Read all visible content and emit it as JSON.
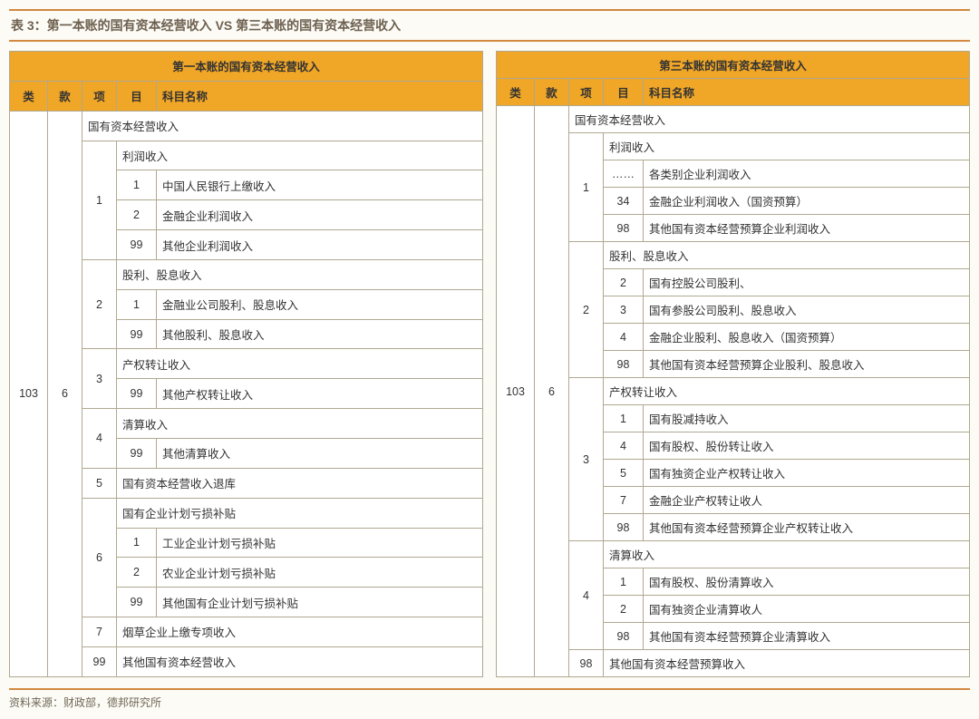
{
  "title": "表 3：第一本账的国有资本经营收入 VS 第三本账的国有资本经营收入",
  "left": {
    "caption": "第一本账的国有资本经营收入",
    "cols": {
      "lei": "类",
      "kuan": "款",
      "xiang": "项",
      "mu": "目",
      "name": "科目名称"
    },
    "lei": "103",
    "kuan": "6",
    "top": "国有资本经营收入",
    "groups": [
      {
        "xiang": "1",
        "header": "利润收入",
        "rows": [
          {
            "mu": "1",
            "name": "中国人民银行上缴收入"
          },
          {
            "mu": "2",
            "name": "金融企业利润收入",
            "red": true
          },
          {
            "mu": "99",
            "name": "其他企业利润收入"
          }
        ]
      },
      {
        "xiang": "2",
        "header": "股利、股息收入",
        "rows": [
          {
            "mu": "1",
            "name": "金融业公司股利、股息收入",
            "red": true
          },
          {
            "mu": "99",
            "name": "其他股利、股息收入"
          }
        ]
      },
      {
        "xiang": "3",
        "header": "产权转让收入",
        "rows": [
          {
            "mu": "99",
            "name": "其他产权转让收入"
          }
        ]
      },
      {
        "xiang": "4",
        "header": "清算收入",
        "rows": [
          {
            "mu": "99",
            "name": "其他清算收入"
          }
        ]
      },
      {
        "xiang": "5",
        "header": "国有资本经营收入退库",
        "rows": []
      },
      {
        "xiang": "6",
        "header": "国有企业计划亏损补贴",
        "rows": [
          {
            "mu": "1",
            "name": "工业企业计划亏损补贴"
          },
          {
            "mu": "2",
            "name": "农业企业计划亏损补贴"
          },
          {
            "mu": "99",
            "name": "其他国有企业计划亏损补贴"
          }
        ]
      },
      {
        "xiang": "7",
        "header": "烟草企业上缴专项收入",
        "rows": []
      },
      {
        "xiang": "99",
        "header": "其他国有资本经营收入",
        "rows": []
      }
    ]
  },
  "right": {
    "caption": "第三本账的国有资本经营收入",
    "cols": {
      "lei": "类",
      "kuan": "款",
      "xiang": "项",
      "mu": "目",
      "name": "科目名称"
    },
    "lei": "103",
    "kuan": "6",
    "top": "国有资本经营收入",
    "groups": [
      {
        "xiang": "1",
        "header": "利润收入",
        "rows": [
          {
            "mu": "……",
            "name": "各类别企业利润收入"
          },
          {
            "mu": "34",
            "name": "金融企业利润收入（国资预算）",
            "red": true
          },
          {
            "mu": "98",
            "name": "其他国有资本经营预算企业利润收入"
          }
        ]
      },
      {
        "xiang": "2",
        "header": "股利、股息收入",
        "rows": [
          {
            "mu": "2",
            "name": "国有控股公司股利、"
          },
          {
            "mu": "3",
            "name": "国有参股公司股利、股息收入"
          },
          {
            "mu": "4",
            "name": "金融企业股利、股息收入（国资预算）",
            "red": true
          },
          {
            "mu": "98",
            "name": "其他国有资本经营预算企业股利、股息收入"
          }
        ]
      },
      {
        "xiang": "3",
        "header": "产权转让收入",
        "rows": [
          {
            "mu": "1",
            "name": "国有股减持收入"
          },
          {
            "mu": "4",
            "name": "国有股权、股份转让收入"
          },
          {
            "mu": "5",
            "name": "国有独资企业产权转让收入"
          },
          {
            "mu": "7",
            "name": "金融企业产权转让收人",
            "red": true
          },
          {
            "mu": "98",
            "name": "其他国有资本经营预算企业产权转让收入"
          }
        ]
      },
      {
        "xiang": "4",
        "header": "清算收入",
        "rows": [
          {
            "mu": "1",
            "name": "国有股权、股份清算收入"
          },
          {
            "mu": "2",
            "name": "国有独资企业清算收人"
          },
          {
            "mu": "98",
            "name": "其他国有资本经营预算企业清算收入"
          }
        ]
      },
      {
        "xiang": "98",
        "header": "其他国有资本经营预算收入",
        "rows": []
      }
    ]
  },
  "footer": "资料来源：财政部，德邦研究所",
  "colors": {
    "accent": "#d2883f",
    "header_bg": "#f0a626",
    "border": "#b0a890",
    "page_bg": "#fcfbf6",
    "red": "#e02020",
    "text_muted": "#706856"
  }
}
